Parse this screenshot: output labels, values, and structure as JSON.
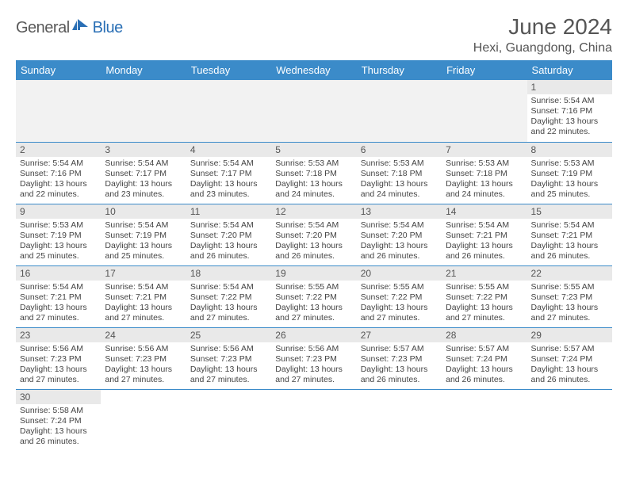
{
  "brand": {
    "part1": "General",
    "part2": "Blue"
  },
  "title": "June 2024",
  "location": "Hexi, Guangdong, China",
  "colors": {
    "header_bg": "#3b8bc9",
    "header_text": "#ffffff",
    "daynum_bg": "#e9e9e9",
    "border": "#3b8bc9",
    "logo_gray": "#5a5a5a",
    "logo_blue": "#2a6fb5"
  },
  "dayHeaders": [
    "Sunday",
    "Monday",
    "Tuesday",
    "Wednesday",
    "Thursday",
    "Friday",
    "Saturday"
  ],
  "weeks": [
    [
      null,
      null,
      null,
      null,
      null,
      null,
      {
        "n": "1",
        "sunrise": "Sunrise: 5:54 AM",
        "sunset": "Sunset: 7:16 PM",
        "day": "Daylight: 13 hours and 22 minutes."
      }
    ],
    [
      {
        "n": "2",
        "sunrise": "Sunrise: 5:54 AM",
        "sunset": "Sunset: 7:16 PM",
        "day": "Daylight: 13 hours and 22 minutes."
      },
      {
        "n": "3",
        "sunrise": "Sunrise: 5:54 AM",
        "sunset": "Sunset: 7:17 PM",
        "day": "Daylight: 13 hours and 23 minutes."
      },
      {
        "n": "4",
        "sunrise": "Sunrise: 5:54 AM",
        "sunset": "Sunset: 7:17 PM",
        "day": "Daylight: 13 hours and 23 minutes."
      },
      {
        "n": "5",
        "sunrise": "Sunrise: 5:53 AM",
        "sunset": "Sunset: 7:18 PM",
        "day": "Daylight: 13 hours and 24 minutes."
      },
      {
        "n": "6",
        "sunrise": "Sunrise: 5:53 AM",
        "sunset": "Sunset: 7:18 PM",
        "day": "Daylight: 13 hours and 24 minutes."
      },
      {
        "n": "7",
        "sunrise": "Sunrise: 5:53 AM",
        "sunset": "Sunset: 7:18 PM",
        "day": "Daylight: 13 hours and 24 minutes."
      },
      {
        "n": "8",
        "sunrise": "Sunrise: 5:53 AM",
        "sunset": "Sunset: 7:19 PM",
        "day": "Daylight: 13 hours and 25 minutes."
      }
    ],
    [
      {
        "n": "9",
        "sunrise": "Sunrise: 5:53 AM",
        "sunset": "Sunset: 7:19 PM",
        "day": "Daylight: 13 hours and 25 minutes."
      },
      {
        "n": "10",
        "sunrise": "Sunrise: 5:54 AM",
        "sunset": "Sunset: 7:19 PM",
        "day": "Daylight: 13 hours and 25 minutes."
      },
      {
        "n": "11",
        "sunrise": "Sunrise: 5:54 AM",
        "sunset": "Sunset: 7:20 PM",
        "day": "Daylight: 13 hours and 26 minutes."
      },
      {
        "n": "12",
        "sunrise": "Sunrise: 5:54 AM",
        "sunset": "Sunset: 7:20 PM",
        "day": "Daylight: 13 hours and 26 minutes."
      },
      {
        "n": "13",
        "sunrise": "Sunrise: 5:54 AM",
        "sunset": "Sunset: 7:20 PM",
        "day": "Daylight: 13 hours and 26 minutes."
      },
      {
        "n": "14",
        "sunrise": "Sunrise: 5:54 AM",
        "sunset": "Sunset: 7:21 PM",
        "day": "Daylight: 13 hours and 26 minutes."
      },
      {
        "n": "15",
        "sunrise": "Sunrise: 5:54 AM",
        "sunset": "Sunset: 7:21 PM",
        "day": "Daylight: 13 hours and 26 minutes."
      }
    ],
    [
      {
        "n": "16",
        "sunrise": "Sunrise: 5:54 AM",
        "sunset": "Sunset: 7:21 PM",
        "day": "Daylight: 13 hours and 27 minutes."
      },
      {
        "n": "17",
        "sunrise": "Sunrise: 5:54 AM",
        "sunset": "Sunset: 7:21 PM",
        "day": "Daylight: 13 hours and 27 minutes."
      },
      {
        "n": "18",
        "sunrise": "Sunrise: 5:54 AM",
        "sunset": "Sunset: 7:22 PM",
        "day": "Daylight: 13 hours and 27 minutes."
      },
      {
        "n": "19",
        "sunrise": "Sunrise: 5:55 AM",
        "sunset": "Sunset: 7:22 PM",
        "day": "Daylight: 13 hours and 27 minutes."
      },
      {
        "n": "20",
        "sunrise": "Sunrise: 5:55 AM",
        "sunset": "Sunset: 7:22 PM",
        "day": "Daylight: 13 hours and 27 minutes."
      },
      {
        "n": "21",
        "sunrise": "Sunrise: 5:55 AM",
        "sunset": "Sunset: 7:22 PM",
        "day": "Daylight: 13 hours and 27 minutes."
      },
      {
        "n": "22",
        "sunrise": "Sunrise: 5:55 AM",
        "sunset": "Sunset: 7:23 PM",
        "day": "Daylight: 13 hours and 27 minutes."
      }
    ],
    [
      {
        "n": "23",
        "sunrise": "Sunrise: 5:56 AM",
        "sunset": "Sunset: 7:23 PM",
        "day": "Daylight: 13 hours and 27 minutes."
      },
      {
        "n": "24",
        "sunrise": "Sunrise: 5:56 AM",
        "sunset": "Sunset: 7:23 PM",
        "day": "Daylight: 13 hours and 27 minutes."
      },
      {
        "n": "25",
        "sunrise": "Sunrise: 5:56 AM",
        "sunset": "Sunset: 7:23 PM",
        "day": "Daylight: 13 hours and 27 minutes."
      },
      {
        "n": "26",
        "sunrise": "Sunrise: 5:56 AM",
        "sunset": "Sunset: 7:23 PM",
        "day": "Daylight: 13 hours and 27 minutes."
      },
      {
        "n": "27",
        "sunrise": "Sunrise: 5:57 AM",
        "sunset": "Sunset: 7:23 PM",
        "day": "Daylight: 13 hours and 26 minutes."
      },
      {
        "n": "28",
        "sunrise": "Sunrise: 5:57 AM",
        "sunset": "Sunset: 7:24 PM",
        "day": "Daylight: 13 hours and 26 minutes."
      },
      {
        "n": "29",
        "sunrise": "Sunrise: 5:57 AM",
        "sunset": "Sunset: 7:24 PM",
        "day": "Daylight: 13 hours and 26 minutes."
      }
    ],
    [
      {
        "n": "30",
        "sunrise": "Sunrise: 5:58 AM",
        "sunset": "Sunset: 7:24 PM",
        "day": "Daylight: 13 hours and 26 minutes."
      },
      null,
      null,
      null,
      null,
      null,
      null
    ]
  ]
}
